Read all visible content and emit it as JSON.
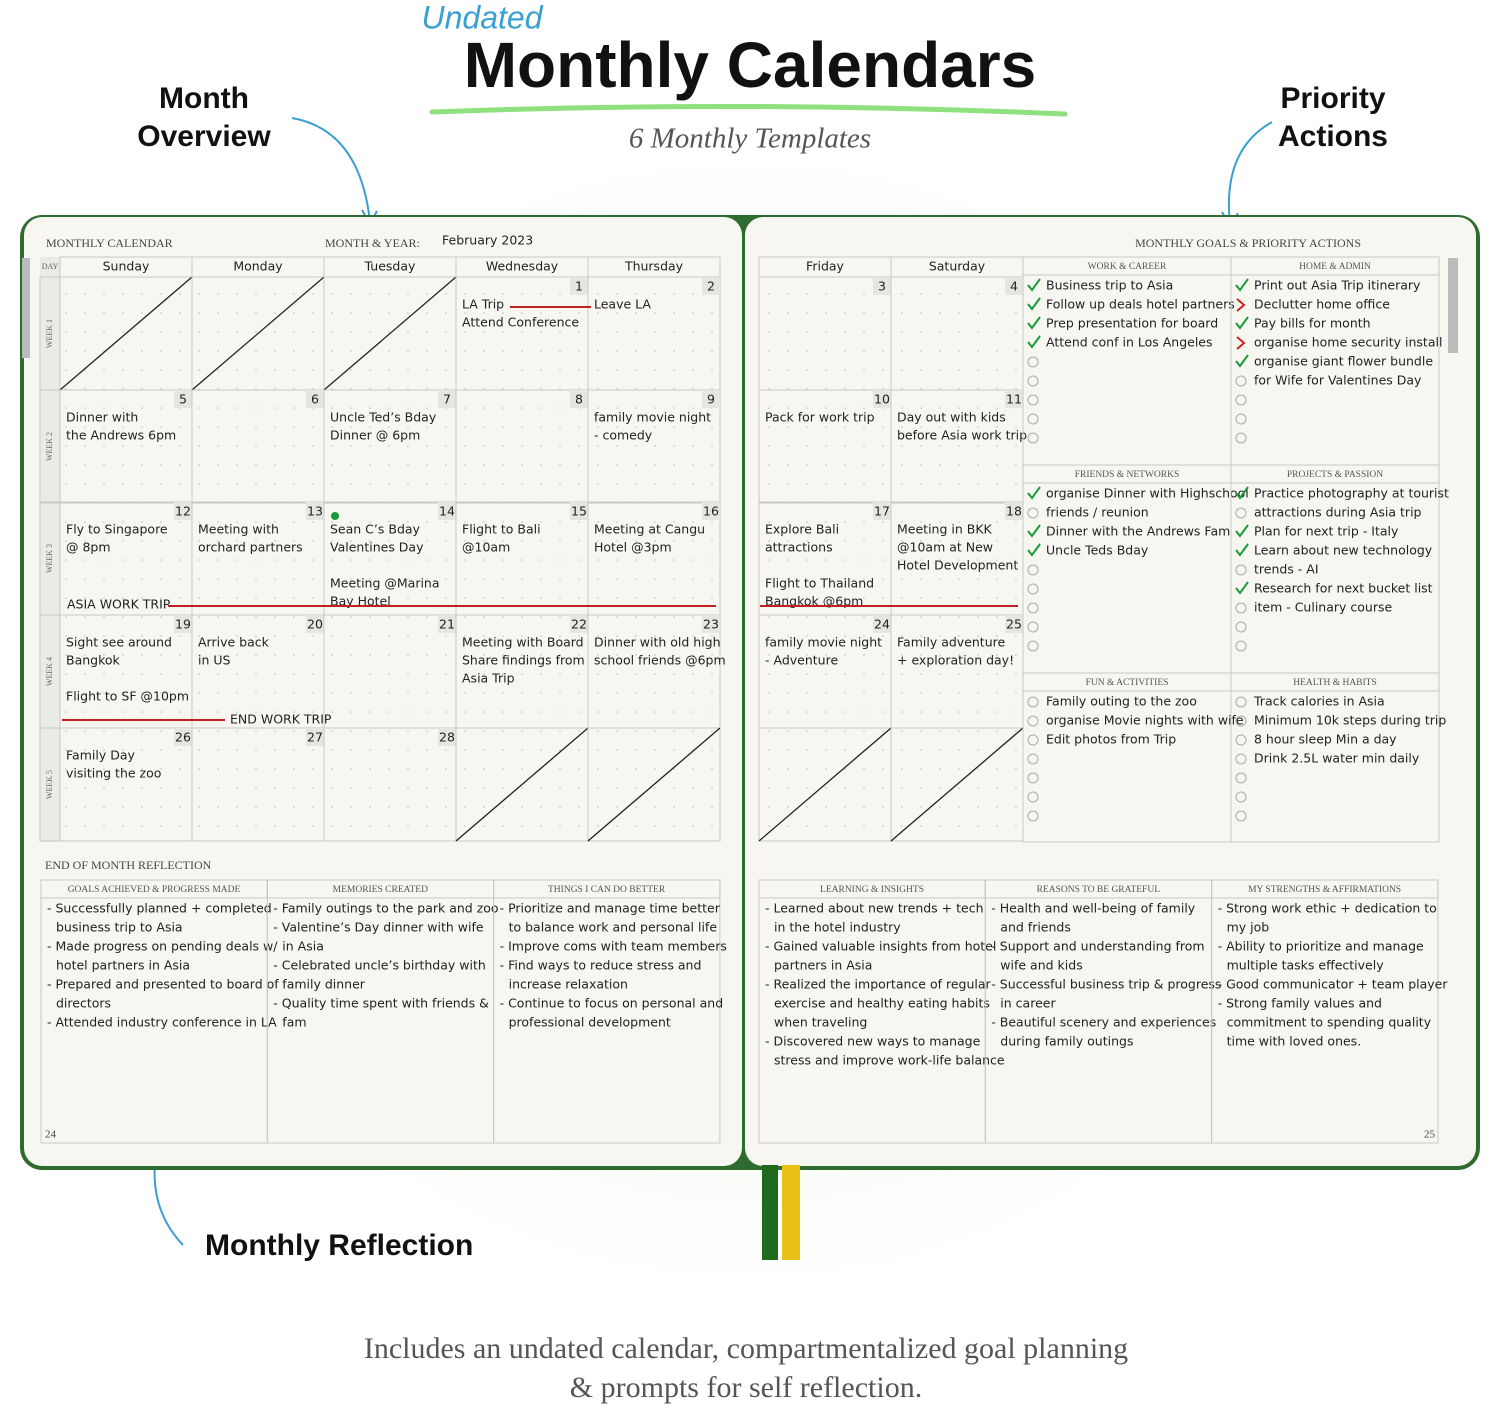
{
  "header": {
    "script_word": "Undated",
    "title": "Monthly Calendars",
    "subtitle": "6 Monthly Templates"
  },
  "callouts": {
    "month_overview": [
      "Month",
      "Overview"
    ],
    "priority_actions": [
      "Priority",
      "Actions"
    ],
    "monthly_reflection": "Monthly Reflection"
  },
  "calendar": {
    "label": "MONTHLY CALENDAR",
    "month_year_label": "MONTH & YEAR:",
    "month_year": "February 2023",
    "day_label": "DAY",
    "days": [
      "Sunday",
      "Monday",
      "Tuesday",
      "Wednesday",
      "Thursday",
      "Friday",
      "Saturday"
    ],
    "weeks": [
      {
        "label": "WEEK 1",
        "cells": [
          null,
          null,
          null,
          {
            "day": 1,
            "notes": [
              [
                "LA Trip",
                "Attend Conference"
              ]
            ]
          },
          {
            "day": 2,
            "notes": [
              [
                "Leave LA"
              ]
            ]
          },
          {
            "day": 3,
            "notes": []
          },
          {
            "day": 4,
            "notes": []
          }
        ]
      },
      {
        "label": "WEEK 2",
        "cells": [
          {
            "day": 5,
            "notes": [
              [
                "Dinner with",
                "the Andrews 6pm"
              ]
            ]
          },
          {
            "day": 6,
            "notes": []
          },
          {
            "day": 7,
            "notes": [
              [
                "Uncle Ted’s Bday",
                "Dinner @ 6pm"
              ]
            ]
          },
          {
            "day": 8,
            "notes": []
          },
          {
            "day": 9,
            "notes": [
              [
                "family movie night",
                "- comedy"
              ]
            ]
          },
          {
            "day": 10,
            "notes": [
              [
                "Pack for work trip"
              ]
            ]
          },
          {
            "day": 11,
            "notes": [
              [
                "Day out with kids",
                "before Asia work trip"
              ]
            ]
          }
        ]
      },
      {
        "label": "WEEK 3",
        "cells": [
          {
            "day": 12,
            "notes": [
              [
                "Fly to Singapore",
                "@ 8pm"
              ]
            ]
          },
          {
            "day": 13,
            "notes": [
              [
                "Meeting with",
                "orchard partners"
              ]
            ]
          },
          {
            "day": 14,
            "notes": [
              [
                "Sean C’s Bday",
                "Valentines Day"
              ],
              [
                "Meeting @Marina",
                "Bay Hotel"
              ]
            ]
          },
          {
            "day": 15,
            "notes": [
              [
                "Flight to Bali",
                "@10am"
              ]
            ]
          },
          {
            "day": 16,
            "notes": [
              [
                "Meeting at Cangu",
                "Hotel @3pm"
              ]
            ]
          },
          {
            "day": 17,
            "notes": [
              [
                "Explore Bali",
                "attractions"
              ],
              [
                "Flight to Thailand",
                "Bangkok @6pm"
              ]
            ]
          },
          {
            "day": 18,
            "notes": [
              [
                "Meeting in BKK",
                "@10am at New",
                "Hotel Development"
              ]
            ]
          }
        ]
      },
      {
        "label": "WEEK 4",
        "cells": [
          {
            "day": 19,
            "notes": [
              [
                "Sight see around",
                "Bangkok"
              ],
              [
                "Flight to SF @10pm"
              ]
            ]
          },
          {
            "day": 20,
            "notes": [
              [
                "Arrive back",
                "in US"
              ]
            ]
          },
          {
            "day": 21,
            "notes": []
          },
          {
            "day": 22,
            "notes": [
              [
                "Meeting with Board",
                "Share findings from",
                "Asia Trip"
              ]
            ]
          },
          {
            "day": 23,
            "notes": [
              [
                "Dinner with old high",
                "school friends @6pm"
              ]
            ]
          },
          {
            "day": 24,
            "notes": [
              [
                "family movie night",
                "- Adventure"
              ]
            ]
          },
          {
            "day": 25,
            "notes": [
              [
                "Family adventure",
                "+ exploration day!"
              ]
            ]
          }
        ]
      },
      {
        "label": "WEEK 5",
        "cells": [
          {
            "day": 26,
            "notes": [
              [
                "Family Day",
                "visiting the zoo"
              ]
            ]
          },
          {
            "day": 27,
            "notes": []
          },
          {
            "day": 28,
            "notes": []
          },
          null,
          null,
          null,
          null
        ]
      }
    ],
    "annotations": [
      "ASIA WORK TRIP",
      "END WORK TRIP"
    ]
  },
  "goals": {
    "label": "MONTHLY GOALS & PRIORITY ACTIONS",
    "sections": [
      {
        "title": "WORK & CAREER",
        "items": [
          {
            "text": "Business trip to Asia",
            "status": "done"
          },
          {
            "text": "Follow up deals hotel partners",
            "status": "done"
          },
          {
            "text": "Prep presentation for board",
            "status": "done"
          },
          {
            "text": "Attend conf in Los Angeles",
            "status": "done"
          }
        ]
      },
      {
        "title": "HOME & ADMIN",
        "items": [
          {
            "text": "Print out Asia Trip itinerary",
            "status": "done"
          },
          {
            "text": "Declutter home office",
            "status": "moved"
          },
          {
            "text": "Pay bills for month",
            "status": "done"
          },
          {
            "text": "organise home security install",
            "status": "moved"
          },
          {
            "text": "organise giant flower bundle",
            "status": "done"
          },
          {
            "text": "for Wife for Valentines Day",
            "status": "open"
          }
        ]
      },
      {
        "title": "FRIENDS & NETWORKS",
        "items": [
          {
            "text": "organise Dinner with Highschool",
            "status": "done"
          },
          {
            "text": "friends / reunion",
            "status": "open"
          },
          {
            "text": "Dinner with the Andrews Fam",
            "status": "done"
          },
          {
            "text": "Uncle Teds Bday",
            "status": "done"
          }
        ]
      },
      {
        "title": "PROJECTS & PASSION",
        "items": [
          {
            "text": "Practice photography at tourist",
            "status": "done"
          },
          {
            "text": "attractions during Asia trip",
            "status": "open"
          },
          {
            "text": "Plan for next trip - Italy",
            "status": "done"
          },
          {
            "text": "Learn about new technology",
            "status": "done"
          },
          {
            "text": "trends - AI",
            "status": "open"
          },
          {
            "text": "Research for next bucket list",
            "status": "done"
          },
          {
            "text": "item - Culinary course",
            "status": "open"
          }
        ]
      },
      {
        "title": "FUN & ACTIVITIES",
        "items": [
          {
            "text": "Family outing to the zoo",
            "status": "open"
          },
          {
            "text": "organise Movie nights with wife",
            "status": "open"
          },
          {
            "text": "Edit photos from Trip",
            "status": "open"
          }
        ]
      },
      {
        "title": "HEALTH & HABITS",
        "items": [
          {
            "text": "Track calories in Asia",
            "status": "open"
          },
          {
            "text": "Minimum 10k steps during trip",
            "status": "open"
          },
          {
            "text": "8 hour sleep Min a day",
            "status": "open"
          },
          {
            "text": "Drink 2.5L water min daily",
            "status": "open"
          }
        ]
      }
    ]
  },
  "reflection": {
    "label": "END OF MONTH REFLECTION",
    "columns": [
      {
        "title": "GOALS ACHIEVED & PROGRESS MADE",
        "lines": [
          "- Successfully planned + completed",
          "business trip to Asia",
          "- Made progress on pending deals w/",
          "hotel partners in Asia",
          "- Prepared and presented to board of",
          "directors",
          "- Attended industry conference in LA"
        ]
      },
      {
        "title": "MEMORIES CREATED",
        "lines": [
          "- Family outings to the park and zoo",
          "- Valentine’s Day dinner with wife",
          "in Asia",
          "- Celebrated uncle’s birthday with",
          "family dinner",
          "- Quality time spent with friends &",
          "fam"
        ]
      },
      {
        "title": "THINGS I CAN DO BETTER",
        "lines": [
          "- Prioritize and manage time better",
          "to balance work and personal life",
          "- Improve coms with team members",
          "- Find ways to reduce stress and",
          "increase relaxation",
          "- Continue to focus on personal and",
          "professional development"
        ]
      },
      {
        "title": "LEARNING & INSIGHTS",
        "lines": [
          "- Learned about new trends + tech",
          "in the hotel industry",
          "- Gained valuable insights from hotel",
          "partners in Asia",
          "- Realized the importance of regular",
          "exercise and healthy eating habits",
          "when traveling",
          "- Discovered new ways to manage",
          "stress and improve work-life balance"
        ]
      },
      {
        "title": "REASONS TO BE GRATEFUL",
        "lines": [
          "- Health and well-being of family",
          "and friends",
          "- Support and understanding from",
          "wife and kids",
          "- Successful business trip & progress",
          "in career",
          "- Beautiful scenery and experiences",
          "during family outings"
        ]
      },
      {
        "title": "MY STRENGTHS & AFFIRMATIONS",
        "lines": [
          "- Strong work ethic + dedication to",
          "my job",
          "- Ability to prioritize and manage",
          "multiple tasks effectively",
          "- Good communicator + team player",
          "- Strong family values and",
          "commitment to spending quality",
          "time with loved ones."
        ]
      }
    ]
  },
  "page_numbers": [
    24,
    25
  ],
  "footer": [
    "Includes an undated calendar, compartmentalized goal planning",
    "& prompts for self reflection."
  ]
}
